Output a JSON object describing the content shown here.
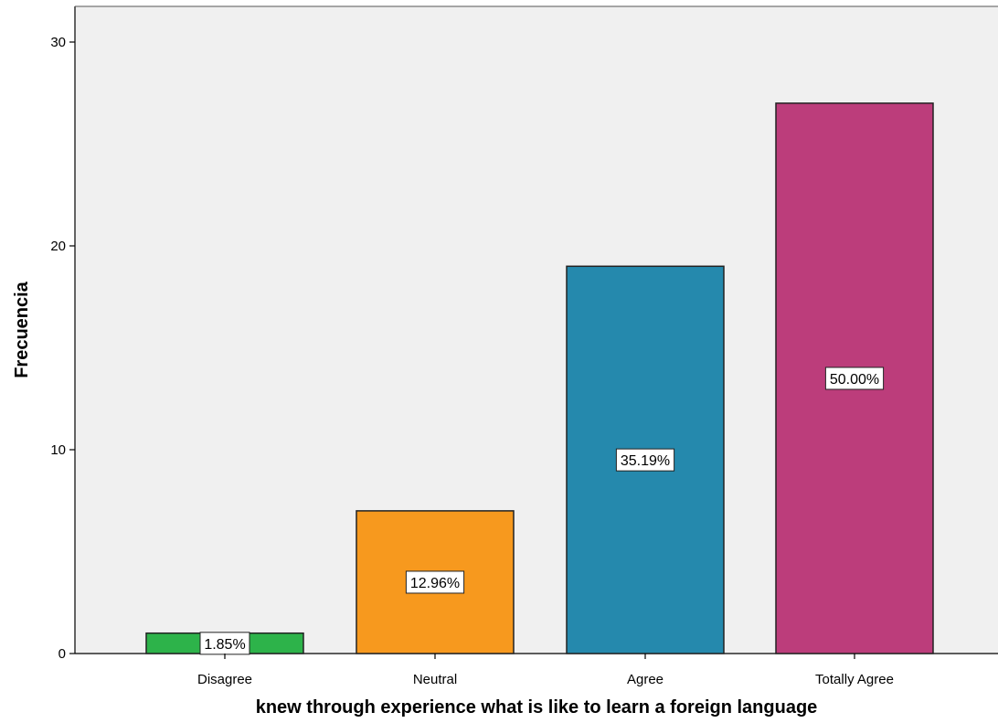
{
  "chart_data": {
    "type": "bar",
    "categories": [
      "Disagree",
      "Neutral",
      "Agree",
      "Totally Agree"
    ],
    "values": [
      1,
      7,
      19,
      27
    ],
    "percent_labels": [
      "1.85%",
      "12.96%",
      "35.19%",
      "50.00%"
    ],
    "colors": [
      "#2db34a",
      "#f7991e",
      "#2589ad",
      "#bc3d7b"
    ],
    "xlabel": "knew through experience what is like to learn a foreign language",
    "ylabel": "Frecuencia",
    "ylim": [
      0,
      30
    ],
    "yticks": [
      0,
      10,
      20,
      30
    ],
    "grid": false,
    "background": "#f0f0f0"
  }
}
